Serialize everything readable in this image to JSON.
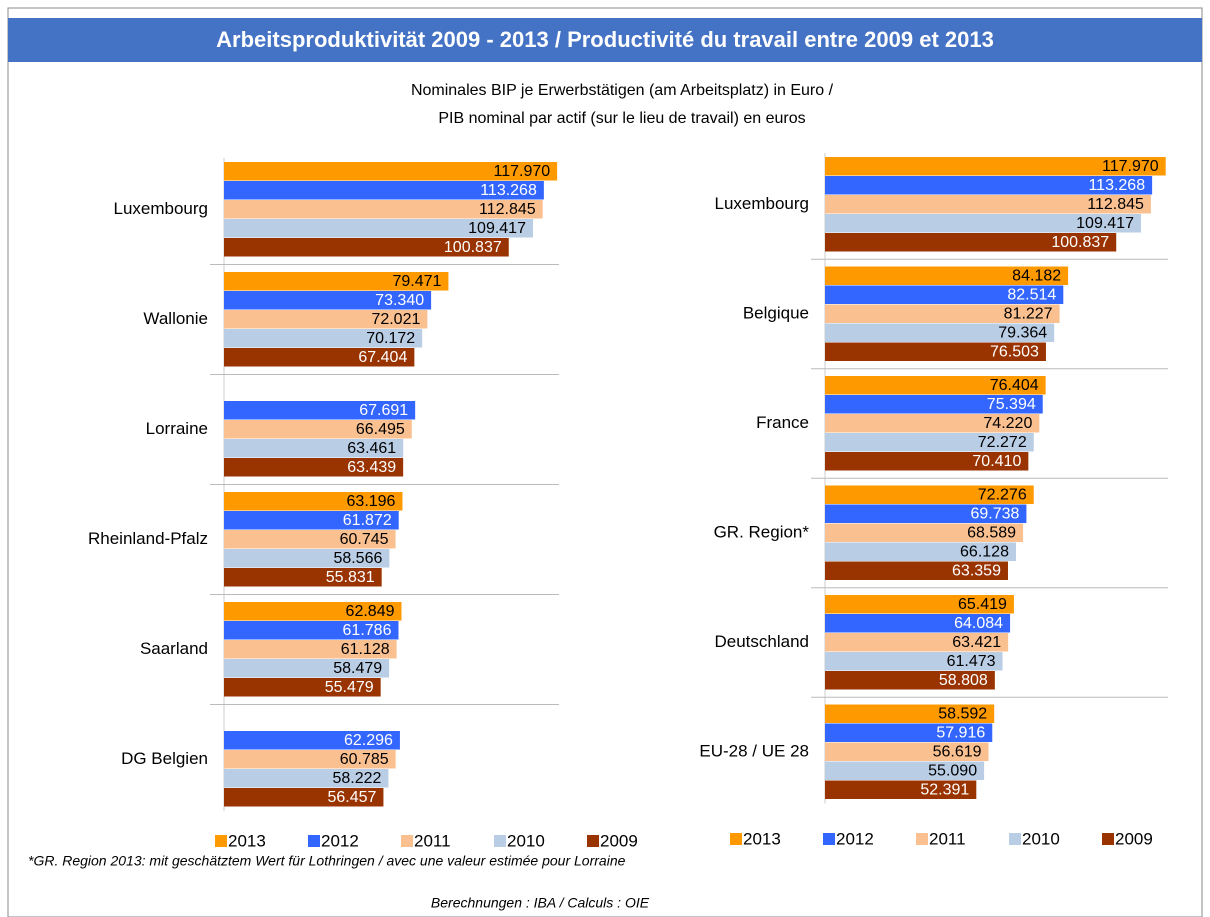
{
  "header": {
    "title": "Arbeitsproduktivität 2009 - 2013 / Productivité du travail entre 2009 et 2013",
    "subtitle": [
      "Nominales BIP je Erwerbstätigen (am Arbeitsplatz) in Euro /",
      "PIB nominal par actif (sur le lieu de travail) en euros"
    ]
  },
  "chart_data": [
    {
      "type": "bar",
      "orientation": "horizontal",
      "xlim": [
        0,
        125000
      ],
      "categories": [
        "Luxembourg",
        "Wallonie",
        "Lorraine",
        "Rheinland-Pfalz",
        "Saarland",
        "DG Belgien"
      ],
      "series": [
        {
          "name": "2013",
          "color": "#ff9900",
          "label_color": "#000000",
          "values": [
            117970,
            79471,
            null,
            63196,
            62849,
            null
          ],
          "value_labels": [
            "117.970",
            "79.471",
            null,
            "63.196",
            "62.849",
            null
          ]
        },
        {
          "name": "2012",
          "color": "#3366ff",
          "label_color": "#ffffff",
          "values": [
            113268,
            73340,
            67691,
            61872,
            61786,
            62296
          ],
          "value_labels": [
            "113.268",
            "73.340",
            "67.691",
            "61.872",
            "61.786",
            "62.296"
          ]
        },
        {
          "name": "2011",
          "color": "#fac090",
          "label_color": "#000000",
          "values": [
            112845,
            72021,
            66495,
            60745,
            61128,
            60785
          ],
          "value_labels": [
            "112.845",
            "72.021",
            "66.495",
            "60.745",
            "61.128",
            "60.785"
          ]
        },
        {
          "name": "2010",
          "color": "#b9cde5",
          "label_color": "#000000",
          "values": [
            109417,
            70172,
            63461,
            58566,
            58479,
            58222
          ],
          "value_labels": [
            "109.417",
            "70.172",
            "63.461",
            "58.566",
            "58.479",
            "58.222"
          ]
        },
        {
          "name": "2009",
          "color": "#993300",
          "label_color": "#ffffff",
          "values": [
            100837,
            67404,
            63439,
            55831,
            55479,
            56457
          ],
          "value_labels": [
            "100.837",
            "67.404",
            "63.439",
            "55.831",
            "55.479",
            "56.457"
          ]
        }
      ],
      "legend": "bottom"
    },
    {
      "type": "bar",
      "orientation": "horizontal",
      "xlim": [
        0,
        125000
      ],
      "categories": [
        "Luxembourg",
        "Belgique",
        "France",
        "GR. Region*",
        "Deutschland",
        "EU-28 / UE 28"
      ],
      "series": [
        {
          "name": "2013",
          "color": "#ff9900",
          "label_color": "#000000",
          "values": [
            117970,
            84182,
            76404,
            72276,
            65419,
            58592
          ],
          "value_labels": [
            "117.970",
            "84.182",
            "76.404",
            "72.276",
            "65.419",
            "58.592"
          ]
        },
        {
          "name": "2012",
          "color": "#3366ff",
          "label_color": "#ffffff",
          "values": [
            113268,
            82514,
            75394,
            69738,
            64084,
            57916
          ],
          "value_labels": [
            "113.268",
            "82.514",
            "75.394",
            "69.738",
            "64.084",
            "57.916"
          ]
        },
        {
          "name": "2011",
          "color": "#fac090",
          "label_color": "#000000",
          "values": [
            112845,
            81227,
            74220,
            68589,
            63421,
            56619
          ],
          "value_labels": [
            "112.845",
            "81.227",
            "74.220",
            "68.589",
            "63.421",
            "56.619"
          ]
        },
        {
          "name": "2010",
          "color": "#b9cde5",
          "label_color": "#000000",
          "values": [
            109417,
            79364,
            72272,
            66128,
            61473,
            55090
          ],
          "value_labels": [
            "109.417",
            "79.364",
            "72.272",
            "66.128",
            "61.473",
            "55.090"
          ]
        },
        {
          "name": "2009",
          "color": "#993300",
          "label_color": "#ffffff",
          "values": [
            100837,
            76503,
            70410,
            63359,
            58808,
            52391
          ],
          "value_labels": [
            "100.837",
            "76.503",
            "70.410",
            "63.359",
            "58.808",
            "52.391"
          ]
        }
      ],
      "legend": "bottom"
    }
  ],
  "footnote": "*GR. Region 2013: mit geschätztem Wert für Lothringen / avec une valeur estimée pour Lorraine",
  "source": "Berechnungen : IBA / Calculs : OIE"
}
